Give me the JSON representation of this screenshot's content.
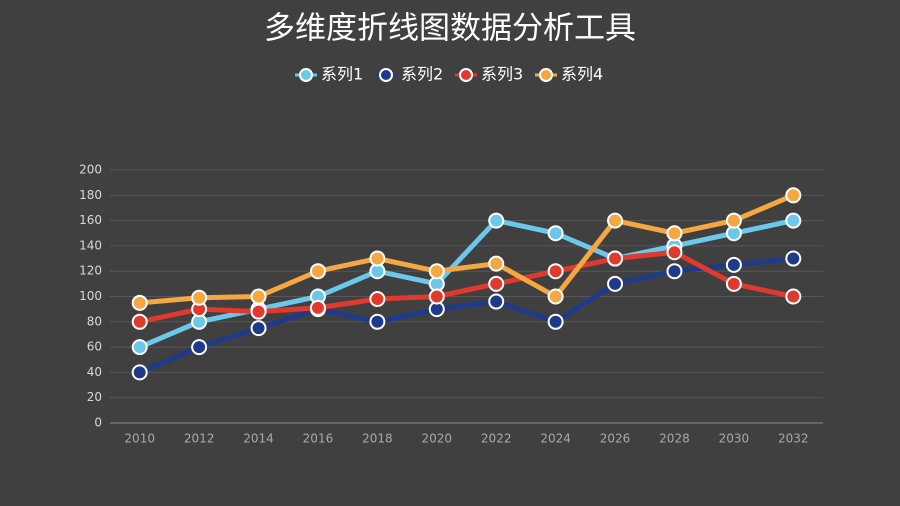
{
  "chart_data": {
    "type": "line",
    "title": "多维度折线图数据分析工具",
    "categories": [
      "2010",
      "2012",
      "2014",
      "2016",
      "2018",
      "2020",
      "2022",
      "2024",
      "2026",
      "2028",
      "2030",
      "2032"
    ],
    "series": [
      {
        "name": "系列1",
        "color": "#6cc8ea",
        "values": [
          60,
          80,
          90,
          100,
          120,
          110,
          160,
          150,
          130,
          140,
          150,
          160
        ]
      },
      {
        "name": "系列2",
        "color": "#1f3a8a",
        "values": [
          40,
          60,
          75,
          90,
          80,
          90,
          96,
          80,
          110,
          120,
          125,
          130
        ]
      },
      {
        "name": "系列3",
        "color": "#e03a2e",
        "values": [
          80,
          90,
          88,
          91,
          98,
          100,
          110,
          120,
          130,
          135,
          110,
          100
        ]
      },
      {
        "name": "系列4",
        "color": "#f5a742",
        "values": [
          95,
          99,
          100,
          120,
          130,
          120,
          126,
          100,
          160,
          150,
          160,
          180
        ]
      }
    ],
    "ylim": [
      0,
      200
    ],
    "yticks": [
      0,
      20,
      40,
      60,
      80,
      100,
      120,
      140,
      160,
      180,
      200
    ],
    "grid": true,
    "legend": "top"
  }
}
